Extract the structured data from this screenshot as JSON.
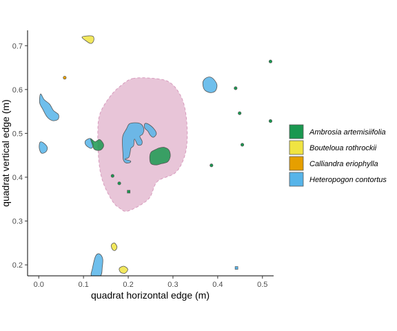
{
  "chart_data": {
    "type": "scatter",
    "xlabel": "quadrat horizontal edge (m)",
    "ylabel": "quadrat vertical edge (m)",
    "xlim": [
      -0.025,
      0.525
    ],
    "ylim": [
      0.175,
      0.735
    ],
    "x_ticks": [
      "0.0",
      "0.1",
      "0.2",
      "0.3",
      "0.4",
      "0.5"
    ],
    "y_ticks": [
      "0.2",
      "0.3",
      "0.4",
      "0.5",
      "0.6",
      "0.7"
    ],
    "grid": false,
    "legend_position": "right",
    "legend": [
      {
        "name": "Ambrosia artemisiifolia",
        "color": "#1a9850"
      },
      {
        "name": "Bouteloua rothrockii",
        "color": "#f0e442"
      },
      {
        "name": "Calliandra eriophylla",
        "color": "#e69f00"
      },
      {
        "name": "Heteropogon contortus",
        "color": "#56b4e9"
      }
    ],
    "highlight_region": {
      "color": "#e8c5d8",
      "outline": [
        [
          0.21,
          0.625
        ],
        [
          0.25,
          0.626
        ],
        [
          0.29,
          0.618
        ],
        [
          0.315,
          0.59
        ],
        [
          0.328,
          0.55
        ],
        [
          0.332,
          0.49
        ],
        [
          0.325,
          0.445
        ],
        [
          0.305,
          0.41
        ],
        [
          0.265,
          0.39
        ],
        [
          0.245,
          0.35
        ],
        [
          0.2,
          0.323
        ],
        [
          0.18,
          0.33
        ],
        [
          0.165,
          0.345
        ],
        [
          0.145,
          0.385
        ],
        [
          0.135,
          0.43
        ],
        [
          0.132,
          0.5
        ],
        [
          0.137,
          0.545
        ],
        [
          0.16,
          0.585
        ],
        [
          0.185,
          0.61
        ]
      ]
    },
    "plants": [
      {
        "species": "Bouteloua rothrockii",
        "outline": [
          [
            0.097,
            0.72
          ],
          [
            0.12,
            0.722
          ],
          [
            0.123,
            0.712
          ],
          [
            0.117,
            0.705
          ],
          [
            0.107,
            0.71
          ]
        ]
      },
      {
        "species": "Bouteloua rothrockii",
        "outline": [
          [
            0.162,
            0.245
          ],
          [
            0.169,
            0.25
          ],
          [
            0.175,
            0.241
          ],
          [
            0.171,
            0.233
          ],
          [
            0.165,
            0.235
          ]
        ]
      },
      {
        "species": "Bouteloua rothrockii",
        "outline": [
          [
            0.18,
            0.192
          ],
          [
            0.19,
            0.197
          ],
          [
            0.199,
            0.19
          ],
          [
            0.193,
            0.181
          ],
          [
            0.183,
            0.183
          ]
        ]
      },
      {
        "species": "Heteropogon contortus",
        "outline": [
          [
            0.004,
            0.59
          ],
          [
            0.012,
            0.577
          ],
          [
            0.024,
            0.567
          ],
          [
            0.033,
            0.552
          ],
          [
            0.044,
            0.543
          ],
          [
            0.043,
            0.532
          ],
          [
            0.031,
            0.529
          ],
          [
            0.019,
            0.537
          ],
          [
            0.009,
            0.555
          ],
          [
            0.002,
            0.57
          ]
        ]
      },
      {
        "species": "Heteropogon contortus",
        "outline": [
          [
            0.003,
            0.48
          ],
          [
            0.011,
            0.478
          ],
          [
            0.019,
            0.468
          ],
          [
            0.016,
            0.458
          ],
          [
            0.006,
            0.455
          ],
          [
            0.001,
            0.467
          ]
        ]
      },
      {
        "species": "Heteropogon contortus",
        "outline": [
          [
            0.127,
            0.22
          ],
          [
            0.136,
            0.225
          ],
          [
            0.143,
            0.214
          ],
          [
            0.142,
            0.195
          ],
          [
            0.138,
            0.175
          ],
          [
            0.118,
            0.175
          ],
          [
            0.12,
            0.192
          ]
        ]
      },
      {
        "species": "Heteropogon contortus",
        "outline": [
          [
            0.375,
            0.627
          ],
          [
            0.387,
            0.627
          ],
          [
            0.398,
            0.612
          ],
          [
            0.395,
            0.597
          ],
          [
            0.383,
            0.593
          ],
          [
            0.37,
            0.6
          ],
          [
            0.367,
            0.617
          ]
        ]
      },
      {
        "species": "Heteropogon contortus",
        "outline": [
          [
            0.22,
            0.524
          ],
          [
            0.23,
            0.52
          ],
          [
            0.235,
            0.509
          ],
          [
            0.232,
            0.498
          ],
          [
            0.226,
            0.493
          ],
          [
            0.231,
            0.482
          ],
          [
            0.229,
            0.474
          ],
          [
            0.221,
            0.474
          ],
          [
            0.214,
            0.487
          ],
          [
            0.212,
            0.472
          ],
          [
            0.206,
            0.466
          ],
          [
            0.204,
            0.455
          ],
          [
            0.201,
            0.445
          ],
          [
            0.193,
            0.441
          ],
          [
            0.205,
            0.437
          ],
          [
            0.203,
            0.433
          ],
          [
            0.194,
            0.433
          ],
          [
            0.189,
            0.44
          ],
          [
            0.188,
            0.455
          ],
          [
            0.187,
            0.478
          ],
          [
            0.188,
            0.495
          ],
          [
            0.196,
            0.51
          ],
          [
            0.203,
            0.522
          ]
        ]
      },
      {
        "species": "Heteropogon contortus",
        "outline": [
          [
            0.237,
            0.522
          ],
          [
            0.245,
            0.521
          ],
          [
            0.257,
            0.511
          ],
          [
            0.263,
            0.499
          ],
          [
            0.256,
            0.491
          ],
          [
            0.249,
            0.496
          ],
          [
            0.244,
            0.505
          ],
          [
            0.237,
            0.512
          ]
        ]
      },
      {
        "species": "Heteropogon contortus",
        "outline": [
          [
            0.105,
            0.484
          ],
          [
            0.116,
            0.488
          ],
          [
            0.122,
            0.475
          ],
          [
            0.118,
            0.466
          ],
          [
            0.11,
            0.469
          ],
          [
            0.104,
            0.476
          ]
        ]
      },
      {
        "species": "Ambrosia artemisiifolia",
        "outline": [
          [
            0.116,
            0.488
          ],
          [
            0.126,
            0.481
          ],
          [
            0.136,
            0.486
          ],
          [
            0.145,
            0.475
          ],
          [
            0.142,
            0.465
          ],
          [
            0.134,
            0.461
          ],
          [
            0.124,
            0.464
          ],
          [
            0.12,
            0.474
          ]
        ]
      },
      {
        "species": "Ambrosia artemisiifolia",
        "outline": [
          [
            0.27,
            0.467
          ],
          [
            0.281,
            0.468
          ],
          [
            0.291,
            0.462
          ],
          [
            0.294,
            0.448
          ],
          [
            0.288,
            0.435
          ],
          [
            0.275,
            0.431
          ],
          [
            0.263,
            0.428
          ],
          [
            0.251,
            0.431
          ],
          [
            0.248,
            0.444
          ],
          [
            0.251,
            0.457
          ],
          [
            0.261,
            0.463
          ]
        ]
      },
      {
        "species": "Ambrosia artemisiifolia",
        "point": [
          0.386,
          0.427
        ],
        "shape": "circle"
      },
      {
        "species": "Ambrosia artemisiifolia",
        "point": [
          0.44,
          0.603
        ],
        "shape": "circle"
      },
      {
        "species": "Ambrosia artemisiifolia",
        "point": [
          0.518,
          0.664
        ],
        "shape": "circle"
      },
      {
        "species": "Ambrosia artemisiifolia",
        "point": [
          0.449,
          0.546
        ],
        "shape": "circle"
      },
      {
        "species": "Ambrosia artemisiifolia",
        "point": [
          0.518,
          0.528
        ],
        "shape": "circle"
      },
      {
        "species": "Ambrosia artemisiifolia",
        "point": [
          0.455,
          0.474
        ],
        "shape": "circle"
      },
      {
        "species": "Ambrosia artemisiifolia",
        "point": [
          0.165,
          0.403
        ],
        "shape": "circle"
      },
      {
        "species": "Ambrosia artemisiifolia",
        "point": [
          0.18,
          0.386
        ],
        "shape": "circle"
      },
      {
        "species": "Ambrosia artemisiifolia",
        "point": [
          0.201,
          0.367
        ],
        "shape": "square"
      },
      {
        "species": "Calliandra eriophylla",
        "point": [
          0.058,
          0.627
        ],
        "shape": "circle"
      },
      {
        "species": "Heteropogon contortus",
        "point": [
          0.442,
          0.193
        ],
        "shape": "square"
      }
    ]
  }
}
